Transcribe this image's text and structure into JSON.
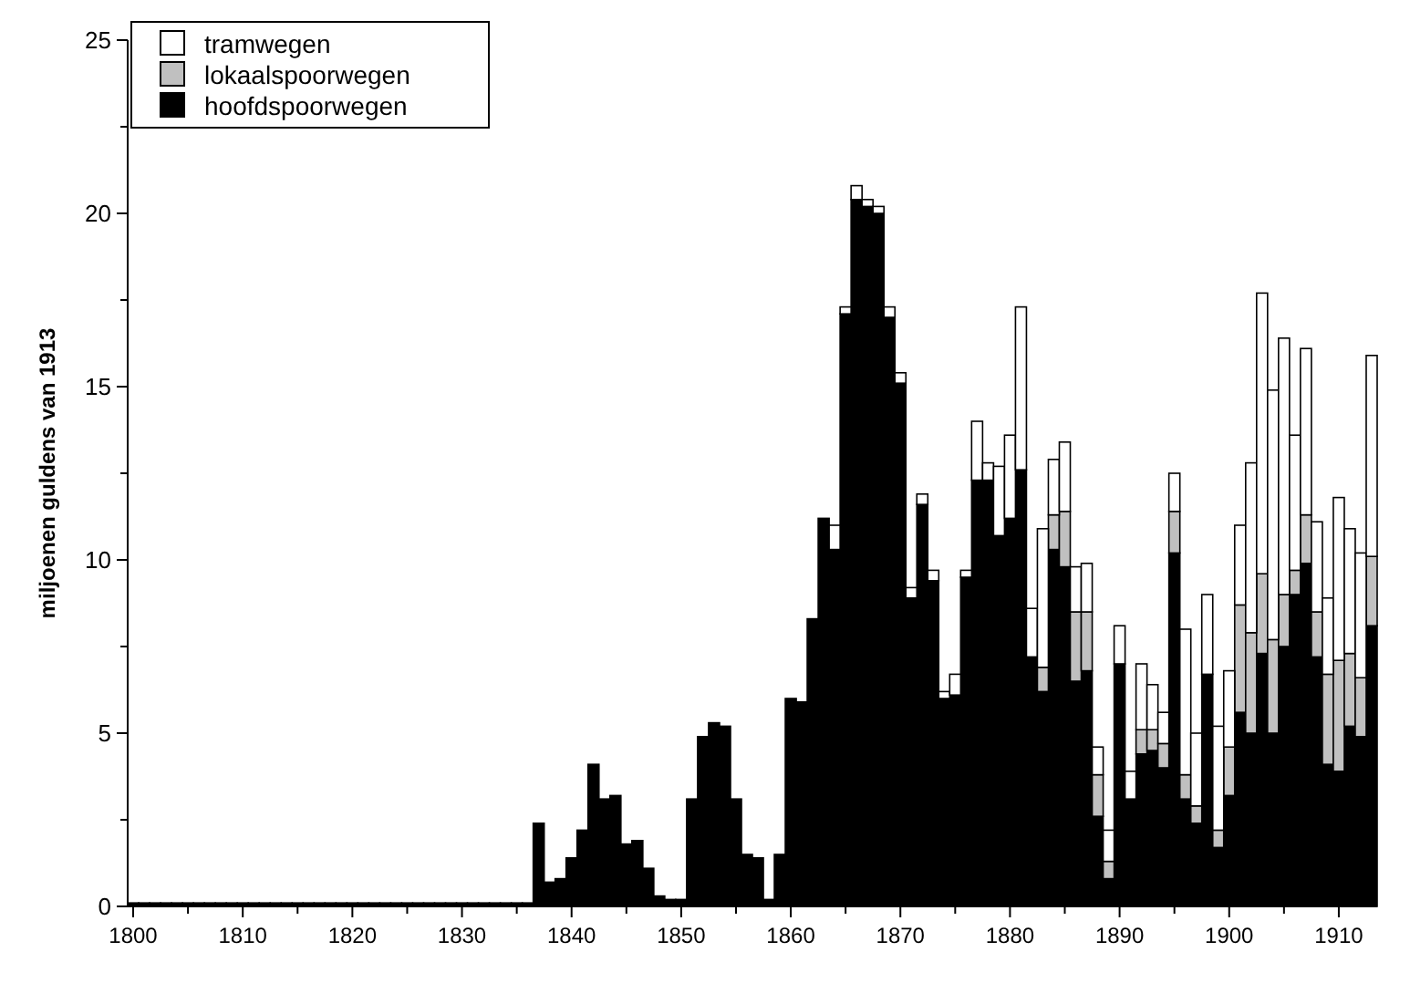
{
  "chart_data": {
    "type": "bar",
    "stacked": true,
    "ylabel": "miljoenen guldens van 1913",
    "x": [
      1800,
      1801,
      1802,
      1803,
      1804,
      1805,
      1806,
      1807,
      1808,
      1809,
      1810,
      1811,
      1812,
      1813,
      1814,
      1815,
      1816,
      1817,
      1818,
      1819,
      1820,
      1821,
      1822,
      1823,
      1824,
      1825,
      1826,
      1827,
      1828,
      1829,
      1830,
      1831,
      1832,
      1833,
      1834,
      1835,
      1836,
      1837,
      1838,
      1839,
      1840,
      1841,
      1842,
      1843,
      1844,
      1845,
      1846,
      1847,
      1848,
      1849,
      1850,
      1851,
      1852,
      1853,
      1854,
      1855,
      1856,
      1857,
      1858,
      1859,
      1860,
      1861,
      1862,
      1863,
      1864,
      1865,
      1866,
      1867,
      1868,
      1869,
      1870,
      1871,
      1872,
      1873,
      1874,
      1875,
      1876,
      1877,
      1878,
      1879,
      1880,
      1881,
      1882,
      1883,
      1884,
      1885,
      1886,
      1887,
      1888,
      1889,
      1890,
      1891,
      1892,
      1893,
      1894,
      1895,
      1896,
      1897,
      1898,
      1899,
      1900,
      1901,
      1902,
      1903,
      1904,
      1905,
      1906,
      1907,
      1908,
      1909,
      1910,
      1911,
      1912,
      1913
    ],
    "series": [
      {
        "name": "hoofdspoorwegen",
        "color": "#000000",
        "values": [
          0.1,
          0.1,
          0.1,
          0.1,
          0.1,
          0.1,
          0.1,
          0.1,
          0.1,
          0.1,
          0.1,
          0.1,
          0.1,
          0.1,
          0.1,
          0.1,
          0.1,
          0.1,
          0.1,
          0.1,
          0.1,
          0.1,
          0.1,
          0.1,
          0.1,
          0.1,
          0.1,
          0.1,
          0.1,
          0.1,
          0.1,
          0.1,
          0.1,
          0.1,
          0.1,
          0.1,
          0.1,
          2.4,
          0.7,
          0.8,
          1.4,
          2.2,
          4.1,
          3.1,
          3.2,
          1.8,
          1.9,
          1.1,
          0.3,
          0.2,
          0.2,
          3.1,
          4.9,
          5.3,
          5.2,
          3.1,
          1.5,
          1.4,
          0.2,
          1.5,
          6.0,
          5.9,
          8.3,
          11.2,
          10.3,
          17.1,
          20.4,
          20.2,
          20.0,
          17.0,
          15.1,
          8.9,
          11.6,
          9.4,
          6.0,
          6.1,
          9.5,
          12.3,
          12.3,
          10.7,
          11.2,
          12.6,
          7.2,
          6.2,
          10.3,
          9.8,
          6.5,
          6.8,
          2.6,
          0.8,
          7.0,
          3.1,
          4.4,
          4.5,
          4.0,
          10.2,
          3.1,
          2.4,
          6.7,
          1.7,
          3.2,
          5.6,
          5.0,
          7.3,
          5.0,
          7.5,
          9.0,
          9.9,
          7.2,
          4.1,
          3.9,
          5.2,
          4.9,
          8.1
        ]
      },
      {
        "name": "lokaalspoorwegen",
        "color": "#c0c0c0",
        "values": [
          0,
          0,
          0,
          0,
          0,
          0,
          0,
          0,
          0,
          0,
          0,
          0,
          0,
          0,
          0,
          0,
          0,
          0,
          0,
          0,
          0,
          0,
          0,
          0,
          0,
          0,
          0,
          0,
          0,
          0,
          0,
          0,
          0,
          0,
          0,
          0,
          0,
          0,
          0,
          0,
          0,
          0,
          0,
          0,
          0,
          0,
          0,
          0,
          0,
          0,
          0,
          0,
          0,
          0,
          0,
          0,
          0,
          0,
          0,
          0,
          0,
          0,
          0,
          0,
          0,
          0,
          0,
          0,
          0,
          0,
          0,
          0,
          0,
          0,
          0,
          0,
          0,
          0,
          0,
          0,
          0,
          0,
          0,
          0.7,
          1.0,
          1.6,
          2.0,
          1.7,
          1.2,
          0.5,
          0,
          0,
          0.7,
          0.6,
          0.7,
          1.2,
          0.7,
          0.5,
          0,
          0.5,
          1.4,
          3.1,
          2.9,
          2.3,
          2.7,
          1.5,
          0.7,
          1.4,
          1.3,
          2.6,
          3.2,
          2.1,
          1.7,
          2.0
        ]
      },
      {
        "name": "tramwegen",
        "color": "#ffffff",
        "values": [
          0,
          0,
          0,
          0,
          0,
          0,
          0,
          0,
          0,
          0,
          0,
          0,
          0,
          0,
          0,
          0,
          0,
          0,
          0,
          0,
          0,
          0,
          0,
          0,
          0,
          0,
          0,
          0,
          0,
          0,
          0,
          0,
          0,
          0,
          0,
          0,
          0,
          0,
          0,
          0,
          0,
          0,
          0,
          0,
          0,
          0,
          0,
          0,
          0,
          0,
          0,
          0,
          0,
          0,
          0,
          0,
          0,
          0,
          0,
          0,
          0,
          0,
          0,
          0,
          0.7,
          0.2,
          0.4,
          0.2,
          0.2,
          0.3,
          0.3,
          0.3,
          0.3,
          0.3,
          0.2,
          0.6,
          0.2,
          1.7,
          0.5,
          2.0,
          2.4,
          4.7,
          1.4,
          4.0,
          1.6,
          2.0,
          1.3,
          1.4,
          0.8,
          0.9,
          1.1,
          0.8,
          1.9,
          1.3,
          0.9,
          1.1,
          4.2,
          2.1,
          2.3,
          3.0,
          2.2,
          2.3,
          4.9,
          8.1,
          7.2,
          7.4,
          3.9,
          4.8,
          2.6,
          2.2,
          4.7,
          3.6,
          3.6,
          5.8
        ]
      }
    ],
    "xlim": [
      1799.5,
      1913.5
    ],
    "xticks": [
      1800,
      {
        "value": 1805,
        "label": null
      },
      1810,
      {
        "value": 1815,
        "label": null
      },
      1820,
      {
        "value": 1825,
        "label": null
      },
      1830,
      {
        "value": 1835,
        "label": null
      },
      1840,
      {
        "value": 1845,
        "label": null
      },
      1850,
      {
        "value": 1855,
        "label": null
      },
      1860,
      {
        "value": 1865,
        "label": null
      },
      1870,
      {
        "value": 1875,
        "label": null
      },
      1880,
      {
        "value": 1885,
        "label": null
      },
      1890,
      {
        "value": 1895,
        "label": null
      },
      1900,
      {
        "value": 1905,
        "label": null
      },
      1910
    ],
    "ylim": [
      0,
      25
    ],
    "yticks": [
      0,
      {
        "value": 2.5,
        "label": null
      },
      5,
      {
        "value": 7.5,
        "label": null
      },
      10,
      {
        "value": 12.5,
        "label": null
      },
      15,
      {
        "value": 17.5,
        "label": null
      },
      20,
      {
        "value": 22.5,
        "label": null
      },
      25
    ],
    "legend": "top left",
    "grid": false
  }
}
